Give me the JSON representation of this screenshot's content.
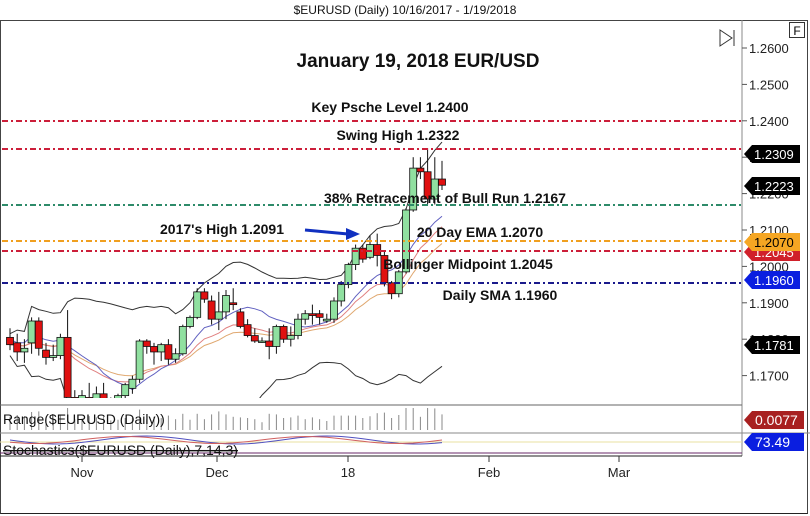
{
  "header": {
    "title": "$EURUSD (Daily)  10/16/2017 - 1/19/2018"
  },
  "toolbar": {
    "f_button": "F",
    "scroll_end_icon": "skip-to-end-icon"
  },
  "chart_data": {
    "type": "candlestick",
    "title": "January 19, 2018 EUR/USD",
    "symbol": "$EURUSD",
    "period": "Daily",
    "date_range": "10/16/2017 - 1/19/2018",
    "y_axis": {
      "ticks": [
        "1.2600",
        "1.2500",
        "1.2400",
        "1.2300",
        "1.2200",
        "1.2100",
        "1.2000",
        "1.1900",
        "1.1800",
        "1.1700"
      ],
      "range": [
        1.165,
        1.265
      ]
    },
    "x_axis": {
      "ticks": [
        "Nov",
        "Dec",
        "18",
        "Feb",
        "Mar"
      ]
    },
    "horizontal_levels": [
      {
        "label": "Key Psche Level 1.2400",
        "value": 1.24,
        "color": "#cc1f3a"
      },
      {
        "label": "Swing High 1.2322",
        "value": 1.2322,
        "color": "#cc1f3a"
      },
      {
        "label": "38% Retracement of Bull Run 1.2167",
        "value": 1.2167,
        "color": "#2e8b6a"
      },
      {
        "label": "20 Day EMA 1.2070",
        "value": 1.207,
        "color": "#f0a020"
      },
      {
        "label": "Bollinger Midpoint 1.2045",
        "value": 1.2045,
        "color": "#cc1f3a"
      },
      {
        "label": "Daily SMA 1.1960",
        "value": 1.196,
        "color": "#1a1a8c"
      }
    ],
    "annotations": [
      {
        "label": "2017's High 1.2091",
        "value": 1.2091,
        "arrow": true,
        "arrow_color": "#1030c0"
      }
    ],
    "price_tags": [
      {
        "value": "1.2309",
        "bg": "#000000",
        "fg": "#ffffff"
      },
      {
        "value": "1.2223",
        "bg": "#000000",
        "fg": "#ffffff"
      },
      {
        "value": "1.2070",
        "bg": "#f5a623",
        "fg": "#000000"
      },
      {
        "value": "1.2045",
        "bg": "#d0202a",
        "fg": "#ffffff"
      },
      {
        "value": "1.1960",
        "bg": "#0a1ee0",
        "fg": "#ffffff"
      },
      {
        "value": "1.1781",
        "bg": "#000000",
        "fg": "#ffffff"
      }
    ],
    "candles": [
      {
        "o": 1.1805,
        "h": 1.183,
        "l": 1.177,
        "c": 1.1785
      },
      {
        "o": 1.179,
        "h": 1.1815,
        "l": 1.174,
        "c": 1.1765
      },
      {
        "o": 1.1765,
        "h": 1.18,
        "l": 1.1735,
        "c": 1.1775
      },
      {
        "o": 1.179,
        "h": 1.186,
        "l": 1.176,
        "c": 1.185
      },
      {
        "o": 1.185,
        "h": 1.186,
        "l": 1.1755,
        "c": 1.1775
      },
      {
        "o": 1.177,
        "h": 1.179,
        "l": 1.173,
        "c": 1.175
      },
      {
        "o": 1.175,
        "h": 1.1785,
        "l": 1.174,
        "c": 1.1755
      },
      {
        "o": 1.1755,
        "h": 1.1815,
        "l": 1.1745,
        "c": 1.1805
      },
      {
        "o": 1.1805,
        "h": 1.188,
        "l": 1.164,
        "c": 1.164
      },
      {
        "o": 1.164,
        "h": 1.166,
        "l": 1.162,
        "c": 1.163
      },
      {
        "o": 1.163,
        "h": 1.166,
        "l": 1.1615,
        "c": 1.1645
      },
      {
        "o": 1.164,
        "h": 1.168,
        "l": 1.1615,
        "c": 1.1635
      },
      {
        "o": 1.163,
        "h": 1.167,
        "l": 1.1615,
        "c": 1.165
      },
      {
        "o": 1.165,
        "h": 1.168,
        "l": 1.162,
        "c": 1.1625
      },
      {
        "o": 1.1625,
        "h": 1.164,
        "l": 1.161,
        "c": 1.163
      },
      {
        "o": 1.163,
        "h": 1.165,
        "l": 1.1615,
        "c": 1.1645
      },
      {
        "o": 1.1645,
        "h": 1.168,
        "l": 1.163,
        "c": 1.1675
      },
      {
        "o": 1.1665,
        "h": 1.17,
        "l": 1.165,
        "c": 1.169
      },
      {
        "o": 1.169,
        "h": 1.18,
        "l": 1.168,
        "c": 1.1795
      },
      {
        "o": 1.1795,
        "h": 1.18,
        "l": 1.176,
        "c": 1.178
      },
      {
        "o": 1.178,
        "h": 1.179,
        "l": 1.173,
        "c": 1.1765
      },
      {
        "o": 1.1765,
        "h": 1.179,
        "l": 1.174,
        "c": 1.1785
      },
      {
        "o": 1.1785,
        "h": 1.18,
        "l": 1.173,
        "c": 1.1745
      },
      {
        "o": 1.1745,
        "h": 1.1775,
        "l": 1.1735,
        "c": 1.176
      },
      {
        "o": 1.176,
        "h": 1.184,
        "l": 1.1755,
        "c": 1.1835
      },
      {
        "o": 1.1835,
        "h": 1.1865,
        "l": 1.183,
        "c": 1.186
      },
      {
        "o": 1.186,
        "h": 1.194,
        "l": 1.1855,
        "c": 1.193
      },
      {
        "o": 1.193,
        "h": 1.194,
        "l": 1.19,
        "c": 1.191
      },
      {
        "o": 1.1905,
        "h": 1.192,
        "l": 1.184,
        "c": 1.1855
      },
      {
        "o": 1.1855,
        "h": 1.193,
        "l": 1.1825,
        "c": 1.1875
      },
      {
        "o": 1.1875,
        "h": 1.1935,
        "l": 1.1855,
        "c": 1.192
      },
      {
        "o": 1.19,
        "h": 1.194,
        "l": 1.188,
        "c": 1.1895
      },
      {
        "o": 1.1875,
        "h": 1.1885,
        "l": 1.183,
        "c": 1.1835
      },
      {
        "o": 1.184,
        "h": 1.1855,
        "l": 1.1805,
        "c": 1.181
      },
      {
        "o": 1.181,
        "h": 1.183,
        "l": 1.179,
        "c": 1.1795
      },
      {
        "o": 1.1795,
        "h": 1.1805,
        "l": 1.179,
        "c": 1.1795
      },
      {
        "o": 1.1795,
        "h": 1.183,
        "l": 1.1745,
        "c": 1.178
      },
      {
        "o": 1.178,
        "h": 1.184,
        "l": 1.176,
        "c": 1.1835
      },
      {
        "o": 1.1835,
        "h": 1.184,
        "l": 1.179,
        "c": 1.18
      },
      {
        "o": 1.18,
        "h": 1.1835,
        "l": 1.178,
        "c": 1.181
      },
      {
        "o": 1.181,
        "h": 1.187,
        "l": 1.18,
        "c": 1.1855
      },
      {
        "o": 1.1855,
        "h": 1.188,
        "l": 1.184,
        "c": 1.187
      },
      {
        "o": 1.187,
        "h": 1.1895,
        "l": 1.184,
        "c": 1.1865
      },
      {
        "o": 1.187,
        "h": 1.188,
        "l": 1.184,
        "c": 1.186
      },
      {
        "o": 1.185,
        "h": 1.187,
        "l": 1.1845,
        "c": 1.1855
      },
      {
        "o": 1.1855,
        "h": 1.1915,
        "l": 1.1845,
        "c": 1.1905
      },
      {
        "o": 1.1905,
        "h": 1.196,
        "l": 1.189,
        "c": 1.195
      },
      {
        "o": 1.195,
        "h": 1.201,
        "l": 1.194,
        "c": 1.2005
      },
      {
        "o": 1.2005,
        "h": 1.206,
        "l": 1.199,
        "c": 1.205
      },
      {
        "o": 1.205,
        "h": 1.206,
        "l": 1.201,
        "c": 1.202
      },
      {
        "o": 1.2025,
        "h": 1.2085,
        "l": 1.202,
        "c": 1.206
      },
      {
        "o": 1.206,
        "h": 1.209,
        "l": 1.2,
        "c": 1.203
      },
      {
        "o": 1.203,
        "h": 1.204,
        "l": 1.1945,
        "c": 1.1955
      },
      {
        "o": 1.1955,
        "h": 1.196,
        "l": 1.191,
        "c": 1.1925
      },
      {
        "o": 1.1925,
        "h": 1.199,
        "l": 1.1915,
        "c": 1.1985
      },
      {
        "o": 1.1985,
        "h": 1.216,
        "l": 1.198,
        "c": 1.2155
      },
      {
        "o": 1.2155,
        "h": 1.23,
        "l": 1.215,
        "c": 1.227
      },
      {
        "o": 1.227,
        "h": 1.23,
        "l": 1.224,
        "c": 1.226
      },
      {
        "o": 1.226,
        "h": 1.2325,
        "l": 1.217,
        "c": 1.2185
      },
      {
        "o": 1.2185,
        "h": 1.23,
        "l": 1.217,
        "c": 1.224
      },
      {
        "o": 1.224,
        "h": 1.229,
        "l": 1.221,
        "c": 1.2223
      }
    ],
    "indicators": [
      {
        "name": "Range($EURUSD (Daily))",
        "value": "0.0077",
        "color": "#a82020"
      },
      {
        "name": "Stochastics($EURUSD (Daily),7,14,3)",
        "value": "73.49",
        "color": "#0a1ee0"
      },
      {
        "name": "Bollinger Bands",
        "color": "#333333"
      },
      {
        "name": "20 Day EMA",
        "color": "#e8a070"
      },
      {
        "name": "SMA",
        "color": "#4a4ab0"
      }
    ]
  }
}
